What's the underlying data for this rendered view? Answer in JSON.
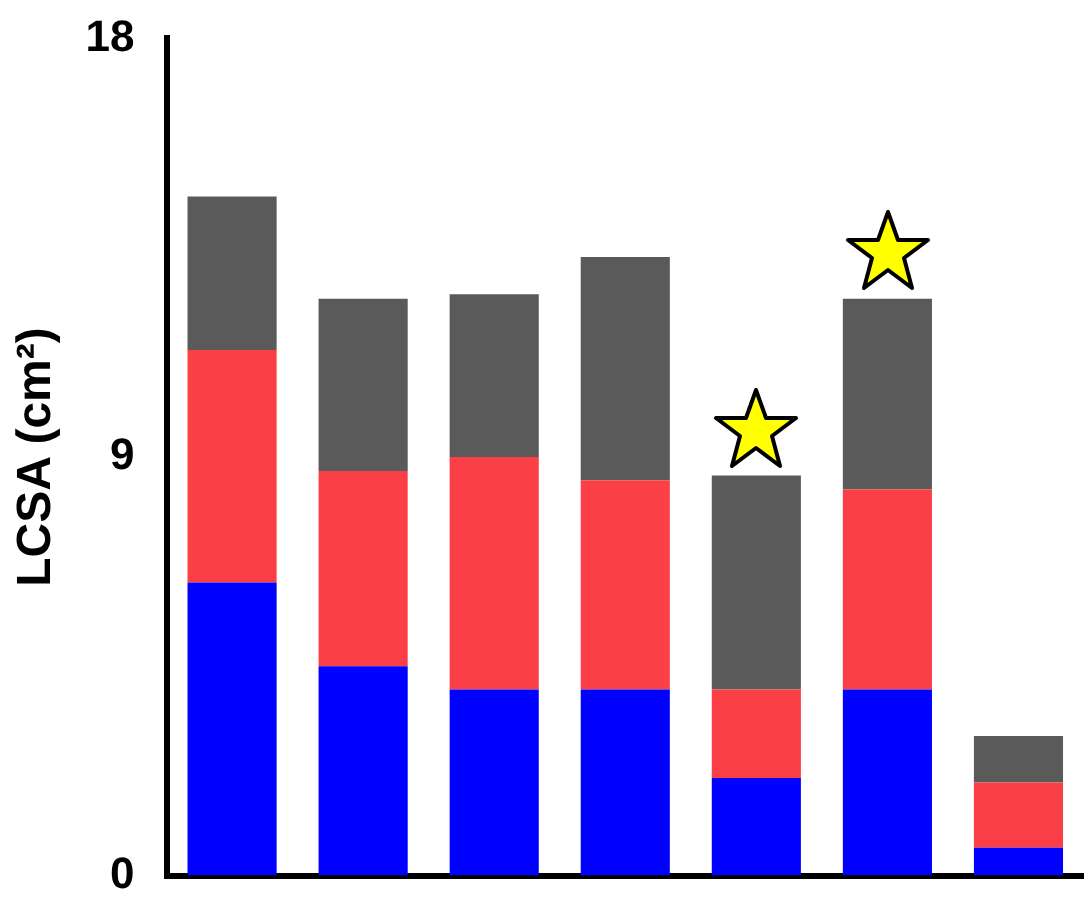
{
  "chart_data": {
    "type": "bar",
    "stacked": true,
    "ylabel": "LCSA (cm²)",
    "categories": [
      null,
      null,
      null,
      null,
      null,
      null,
      null
    ],
    "series": [
      {
        "color": "#0000ff",
        "values": [
          6.3,
          4.5,
          4.0,
          4.0,
          2.1,
          4.0,
          0.6
        ]
      },
      {
        "color": "#fa4046",
        "values": [
          5.0,
          4.2,
          5.0,
          4.5,
          1.9,
          4.3,
          1.4
        ]
      },
      {
        "color": "#5a5a5a",
        "values": [
          3.3,
          3.7,
          3.5,
          4.8,
          4.6,
          4.1,
          1.0
        ]
      }
    ],
    "ylim": [
      0,
      18
    ],
    "yticks": [
      0,
      9,
      18
    ],
    "grid": false,
    "legend": false
  }
}
